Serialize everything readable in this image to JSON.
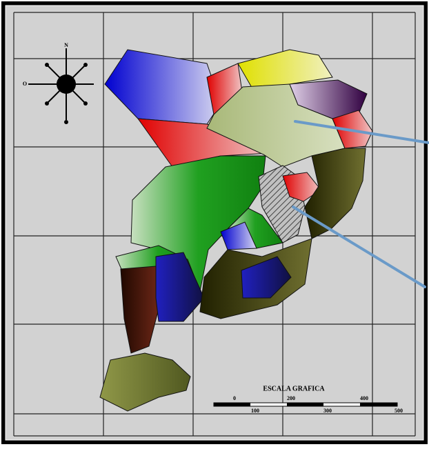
{
  "compass": {
    "north": "N",
    "west": "O"
  },
  "scale": {
    "title": "ESCALA GRAFICA",
    "upper_labels": [
      "0",
      "200",
      "400"
    ],
    "lower_labels": [
      "100",
      "300",
      "500"
    ]
  }
}
